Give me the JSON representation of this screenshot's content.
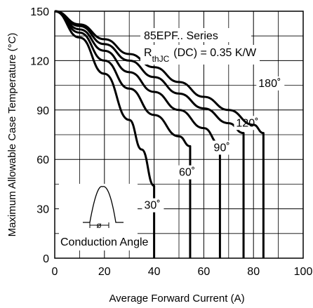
{
  "chart_data": {
    "type": "line",
    "xlabel": "Average Forward Current (A)",
    "ylabel": "Maximum Allowable Case Temperature (°C)",
    "xlim": [
      0,
      100
    ],
    "ylim": [
      0,
      150
    ],
    "x_ticks": [
      0,
      20,
      40,
      60,
      80,
      100
    ],
    "y_ticks": [
      0,
      30,
      60,
      90,
      120,
      150
    ],
    "grid": true,
    "annotations": {
      "series_name": "85EPF.. Series",
      "rth_prefix": "R",
      "rth_subscript": "thJC",
      "rth_value": "(DC) = 0.35 K/W",
      "conduction_angle": "Conduction Angle",
      "phi_symbol": "ø"
    },
    "series": [
      {
        "name": "30°",
        "label": "30˚",
        "x": [
          0,
          10,
          20,
          30,
          35,
          40,
          40
        ],
        "y": [
          150,
          134,
          112,
          84,
          66,
          44,
          0
        ]
      },
      {
        "name": "60°",
        "label": "60˚",
        "x": [
          0,
          10,
          20,
          30,
          40,
          50,
          54.5,
          54.5
        ],
        "y": [
          150,
          137,
          120,
          103,
          87,
          74,
          68,
          0
        ]
      },
      {
        "name": "90°",
        "label": "90˚",
        "x": [
          0,
          10,
          20,
          30,
          40,
          50,
          60,
          66.5,
          66.5
        ],
        "y": [
          150,
          139,
          126,
          113,
          101,
          90,
          79,
          69,
          0
        ]
      },
      {
        "name": "120°",
        "label": "120˚",
        "x": [
          0,
          10,
          20,
          30,
          40,
          50,
          60,
          70,
          76,
          76
        ],
        "y": [
          150,
          141,
          130,
          120,
          110,
          100,
          91,
          82,
          76,
          0
        ]
      },
      {
        "name": "180°",
        "label": "180˚",
        "x": [
          0,
          10,
          20,
          30,
          40,
          50,
          60,
          70,
          80,
          84,
          84
        ],
        "y": [
          150,
          142,
          133,
          124,
          116,
          107,
          98,
          90,
          81,
          76,
          0
        ]
      }
    ]
  }
}
